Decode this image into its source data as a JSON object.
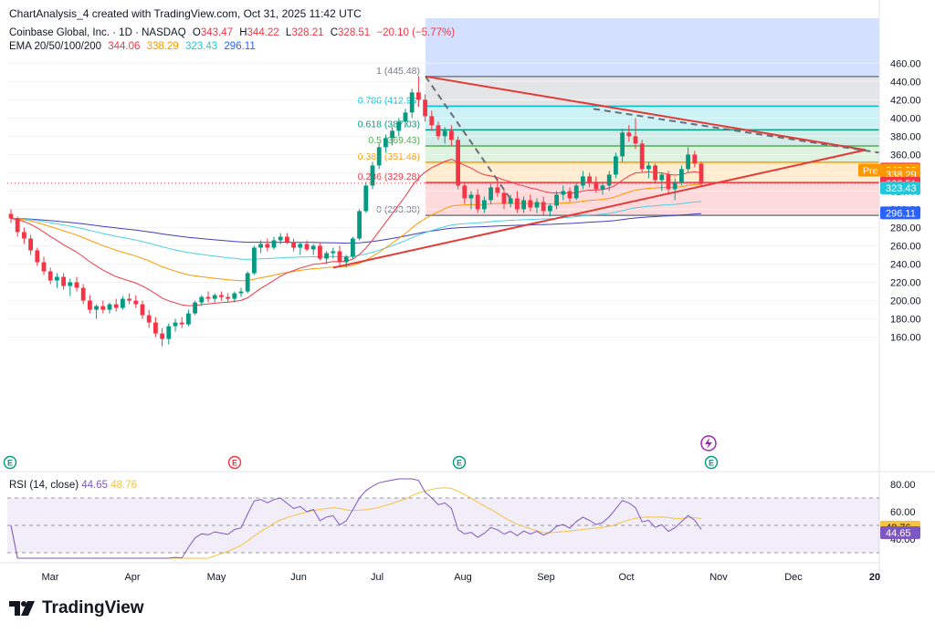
{
  "header": {
    "created_line": "ChartAnalysis_4 created with TradingView.com, Oct 31, 2025 11:42 UTC",
    "symbol_line": "Coinbase Global, Inc. · 1D · NASDAQ",
    "ohlc": {
      "o_label": "O",
      "o": "343.47",
      "h_label": "H",
      "h": "344.22",
      "l_label": "L",
      "l": "328.21",
      "c_label": "C",
      "c": "328.51",
      "change": "−20.10 (−5.77%)"
    },
    "ema_label": "EMA 20/50/100/200",
    "ema_values": [
      "344.06",
      "338.29",
      "323.43",
      "296.11"
    ]
  },
  "rsi_legend": {
    "label": "RSI (14, close)",
    "rsi": "44.65",
    "ma": "48.76"
  },
  "brand": "TradingView",
  "colors": {
    "up": "#089981",
    "down": "#f23645",
    "ema20": "#f23645",
    "ema50": "#ff9800",
    "ema100": "#4dd0e1",
    "ema200": "#3f3fbf",
    "rsi": "#7e57c2",
    "rsi_ma": "#f5c242",
    "fib_0": "#787b86",
    "fib_236": "#f23645",
    "fib_382": "#ff9800",
    "fib_5": "#4caf50",
    "fib_618": "#089981",
    "fib_786": "#00bcd4",
    "fib_1": "#787b86"
  },
  "chart_data": {
    "type": "candlestick",
    "y_axis": {
      "min": 145,
      "max": 475,
      "ticks": [
        160,
        180,
        200,
        220,
        240,
        260,
        280,
        300,
        320,
        340,
        360,
        380,
        400,
        420,
        440,
        460
      ]
    },
    "x_axis": {
      "labels": [
        "Mar",
        "Apr",
        "May",
        "Jun",
        "Jul",
        "Aug",
        "Sep",
        "Oct",
        "Nov",
        "Dec",
        "20"
      ]
    },
    "fib_levels": [
      {
        "label": "1 (445.48)",
        "value": 445.48
      },
      {
        "label": "0.786 (412.93)",
        "value": 412.93
      },
      {
        "label": "0.618 (387.03)",
        "value": 387.03
      },
      {
        "label": "0.5 (369.43)",
        "value": 369.43
      },
      {
        "label": "0.382 (351.48)",
        "value": 351.48
      },
      {
        "label": "0.236 (329.28)",
        "value": 329.28
      },
      {
        "label": "0 (293.38)",
        "value": 293.38
      }
    ],
    "price_tags": [
      {
        "text": "344.06",
        "value": 344.06,
        "color": "#f23645"
      },
      {
        "text": "342.93",
        "value": 342.93,
        "color": "#ff9800",
        "prefix": "Pre"
      },
      {
        "text": "338.29",
        "value": 338.29,
        "color": "#ff9800"
      },
      {
        "text": "328.51",
        "value": 328.51,
        "color": "#f23645"
      },
      {
        "text": "323.43",
        "value": 323.43,
        "color": "#26c6da"
      },
      {
        "text": "296.11",
        "value": 296.11,
        "color": "#2962ff"
      }
    ],
    "candles": [
      [
        0,
        295,
        300,
        285,
        290
      ],
      [
        1,
        290,
        292,
        270,
        275
      ],
      [
        2,
        275,
        280,
        262,
        268
      ],
      [
        3,
        268,
        272,
        250,
        255
      ],
      [
        4,
        255,
        258,
        238,
        242
      ],
      [
        5,
        242,
        248,
        228,
        232
      ],
      [
        6,
        232,
        236,
        218,
        222
      ],
      [
        7,
        222,
        230,
        214,
        226
      ],
      [
        8,
        226,
        230,
        212,
        216
      ],
      [
        9,
        216,
        224,
        205,
        220
      ],
      [
        10,
        220,
        226,
        210,
        214
      ],
      [
        11,
        214,
        218,
        196,
        200
      ],
      [
        12,
        200,
        206,
        186,
        190
      ],
      [
        13,
        190,
        196,
        180,
        194
      ],
      [
        14,
        194,
        200,
        186,
        190
      ],
      [
        15,
        190,
        198,
        186,
        196
      ],
      [
        16,
        196,
        202,
        188,
        192
      ],
      [
        17,
        192,
        205,
        190,
        202
      ],
      [
        18,
        202,
        208,
        196,
        200
      ],
      [
        19,
        200,
        206,
        192,
        196
      ],
      [
        20,
        196,
        200,
        180,
        184
      ],
      [
        21,
        184,
        190,
        170,
        176
      ],
      [
        22,
        176,
        182,
        160,
        164
      ],
      [
        23,
        164,
        170,
        150,
        158
      ],
      [
        24,
        158,
        175,
        152,
        172
      ],
      [
        25,
        172,
        180,
        166,
        176
      ],
      [
        26,
        176,
        182,
        170,
        174
      ],
      [
        27,
        174,
        190,
        172,
        186
      ],
      [
        28,
        186,
        200,
        184,
        198
      ],
      [
        29,
        198,
        206,
        194,
        204
      ],
      [
        30,
        204,
        210,
        198,
        202
      ],
      [
        31,
        202,
        208,
        198,
        206
      ],
      [
        32,
        206,
        210,
        200,
        204
      ],
      [
        33,
        204,
        208,
        198,
        202
      ],
      [
        34,
        202,
        210,
        198,
        208
      ],
      [
        35,
        208,
        214,
        204,
        210
      ],
      [
        36,
        210,
        232,
        208,
        230
      ],
      [
        37,
        230,
        260,
        228,
        258
      ],
      [
        38,
        258,
        266,
        252,
        262
      ],
      [
        39,
        262,
        268,
        254,
        258
      ],
      [
        40,
        258,
        270,
        256,
        266
      ],
      [
        41,
        266,
        274,
        262,
        270
      ],
      [
        42,
        270,
        274,
        262,
        264
      ],
      [
        43,
        264,
        268,
        254,
        258
      ],
      [
        44,
        258,
        264,
        250,
        262
      ],
      [
        45,
        262,
        266,
        254,
        256
      ],
      [
        46,
        256,
        262,
        250,
        260
      ],
      [
        47,
        260,
        264,
        244,
        246
      ],
      [
        48,
        246,
        254,
        240,
        252
      ],
      [
        49,
        252,
        258,
        246,
        254
      ],
      [
        50,
        254,
        260,
        238,
        242
      ],
      [
        51,
        242,
        250,
        236,
        248
      ],
      [
        52,
        248,
        270,
        246,
        268
      ],
      [
        53,
        268,
        300,
        266,
        298
      ],
      [
        54,
        298,
        330,
        296,
        326
      ],
      [
        55,
        326,
        352,
        322,
        348
      ],
      [
        56,
        348,
        372,
        344,
        368
      ],
      [
        57,
        368,
        382,
        362,
        378
      ],
      [
        58,
        378,
        390,
        370,
        386
      ],
      [
        59,
        386,
        400,
        380,
        396
      ],
      [
        60,
        396,
        410,
        390,
        406
      ],
      [
        61,
        406,
        432,
        400,
        428
      ],
      [
        62,
        428,
        446,
        412,
        420
      ],
      [
        63,
        420,
        426,
        396,
        402
      ],
      [
        64,
        402,
        408,
        386,
        392
      ],
      [
        65,
        392,
        396,
        376,
        380
      ],
      [
        66,
        380,
        390,
        372,
        386
      ],
      [
        67,
        386,
        392,
        370,
        376
      ],
      [
        68,
        376,
        380,
        322,
        326
      ],
      [
        69,
        326,
        330,
        306,
        312
      ],
      [
        70,
        312,
        320,
        300,
        316
      ],
      [
        71,
        316,
        322,
        296,
        300
      ],
      [
        72,
        300,
        314,
        296,
        310
      ],
      [
        73,
        310,
        328,
        306,
        324
      ],
      [
        74,
        324,
        332,
        314,
        318
      ],
      [
        75,
        318,
        322,
        300,
        306
      ],
      [
        76,
        306,
        316,
        302,
        312
      ],
      [
        77,
        312,
        320,
        296,
        300
      ],
      [
        78,
        300,
        314,
        296,
        310
      ],
      [
        79,
        310,
        316,
        298,
        302
      ],
      [
        80,
        302,
        312,
        296,
        308
      ],
      [
        81,
        308,
        314,
        294,
        298
      ],
      [
        82,
        298,
        306,
        292,
        304
      ],
      [
        83,
        304,
        320,
        300,
        316
      ],
      [
        84,
        316,
        326,
        310,
        320
      ],
      [
        85,
        320,
        324,
        308,
        312
      ],
      [
        86,
        312,
        330,
        310,
        326
      ],
      [
        87,
        326,
        342,
        322,
        336
      ],
      [
        88,
        336,
        340,
        324,
        330
      ],
      [
        89,
        330,
        336,
        318,
        322
      ],
      [
        90,
        322,
        330,
        316,
        326
      ],
      [
        91,
        326,
        342,
        320,
        338
      ],
      [
        92,
        338,
        362,
        334,
        358
      ],
      [
        93,
        358,
        388,
        352,
        384
      ],
      [
        94,
        384,
        392,
        374,
        380
      ],
      [
        95,
        380,
        400,
        366,
        372
      ],
      [
        96,
        372,
        376,
        340,
        344
      ],
      [
        97,
        344,
        352,
        334,
        348
      ],
      [
        98,
        348,
        350,
        328,
        332
      ],
      [
        99,
        332,
        340,
        320,
        338
      ],
      [
        100,
        338,
        342,
        316,
        322
      ],
      [
        101,
        322,
        334,
        310,
        330
      ],
      [
        102,
        330,
        348,
        326,
        344
      ],
      [
        103,
        344,
        368,
        340,
        360
      ],
      [
        104,
        360,
        364,
        346,
        350
      ],
      [
        105,
        350,
        352,
        326,
        328
      ]
    ],
    "rsi_axis": {
      "min": 25,
      "max": 85,
      "ticks": [
        40,
        60,
        80
      ]
    },
    "rsi_tags": [
      {
        "text": "48.76",
        "value": 48.76,
        "color": "#f5c242"
      },
      {
        "text": "44.65",
        "value": 44.65,
        "color": "#7e57c2"
      }
    ]
  }
}
